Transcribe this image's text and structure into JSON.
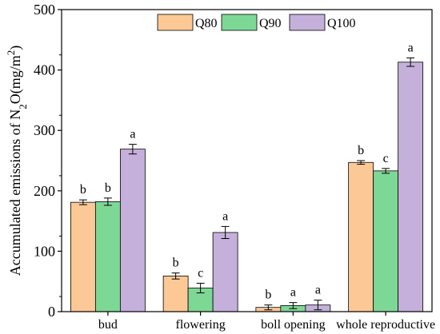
{
  "chart_data": {
    "type": "bar",
    "categories": [
      "bud",
      "flowering",
      "boll opening",
      "whole reproductive"
    ],
    "series": [
      {
        "name": "Q80",
        "color": "#FCC996",
        "values": [
          181,
          59,
          7,
          247
        ],
        "errors": [
          4,
          5,
          4,
          3
        ],
        "letters": [
          "b",
          "b",
          "b",
          "b"
        ]
      },
      {
        "name": "Q90",
        "color": "#7DD895",
        "values": [
          182,
          39,
          10,
          233
        ],
        "errors": [
          6,
          8,
          5,
          4
        ],
        "letters": [
          "b",
          "c",
          "a",
          "c"
        ]
      },
      {
        "name": "Q100",
        "color": "#C4B0DA",
        "values": [
          269,
          131,
          11,
          413
        ],
        "errors": [
          8,
          10,
          8,
          7
        ],
        "letters": [
          "a",
          "a",
          "a",
          "a"
        ]
      }
    ],
    "ylabel_main": "Accumulated emissions of N",
    "ylabel_sub": "2",
    "ylabel_mid": "O(mg/m",
    "ylabel_sup": "2",
    "ylabel_end": ")",
    "ylim": [
      0,
      500
    ],
    "yticks": [
      "0",
      "100",
      "200",
      "300",
      "400",
      "500"
    ],
    "legend_position": "top-center",
    "grid": false
  }
}
